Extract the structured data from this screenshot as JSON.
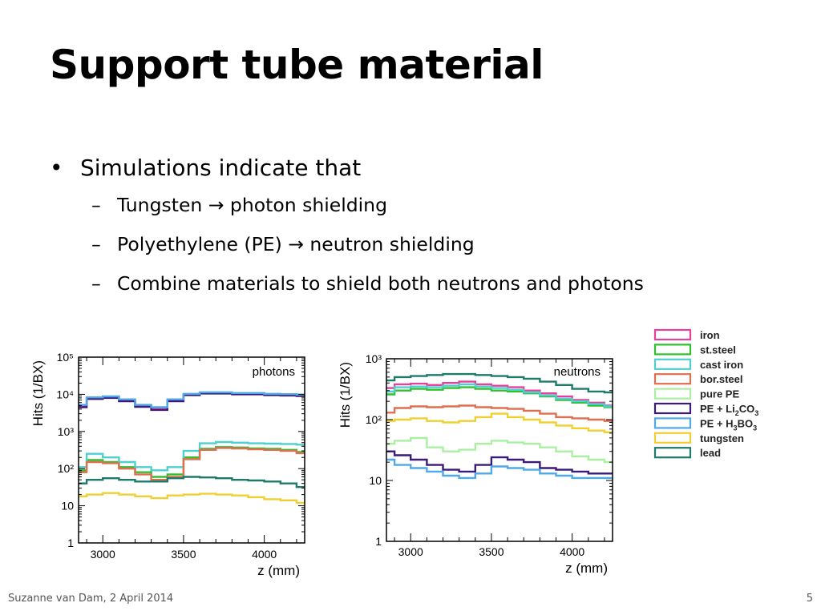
{
  "slide": {
    "title": "Support tube material",
    "bullet": "Simulations indicate that",
    "subbullets": [
      "Tungsten → photon shielding",
      "Polyethylene (PE) → neutron shielding",
      "Combine materials to shield both neutrons and photons"
    ],
    "dash": "–",
    "footer": "Suzanne van Dam, 2 April 2014",
    "page_number": "5"
  },
  "legend": [
    {
      "label": "iron",
      "color": "#e8409a"
    },
    {
      "label": "st.steel",
      "color": "#2ec02e"
    },
    {
      "label": "cast iron",
      "color": "#4fd0d0"
    },
    {
      "label": "bor.steel",
      "color": "#e06e50"
    },
    {
      "label": "pure PE",
      "color": "#a8f0a0"
    },
    {
      "label": "PE + Li2CO3",
      "color": "#3a1a7a"
    },
    {
      "label": "PE + H3BO3",
      "color": "#4fa8e8"
    },
    {
      "label": "tungsten",
      "color": "#f0d030"
    },
    {
      "label": "lead",
      "color": "#1e7a6a"
    }
  ],
  "chart_data": [
    {
      "type": "line",
      "annotation": "photons",
      "xlabel": "z (mm)",
      "ylabel": "Hits (1/BX)",
      "xlim": [
        2850,
        4250
      ],
      "ylim": [
        1,
        100000
      ],
      "yscale": "log",
      "x_ticks": [
        "3000",
        "3500",
        "4000"
      ],
      "y_ticks": [
        "1",
        "10",
        "10²",
        "10³",
        "10⁴",
        "10⁵"
      ],
      "x": [
        2850,
        2950,
        3050,
        3150,
        3250,
        3350,
        3450,
        3550,
        3650,
        3750,
        3850,
        3950,
        4050,
        4150,
        4250
      ],
      "series": [
        {
          "name": "iron",
          "values": [
            5000,
            8000,
            8500,
            7000,
            5000,
            4200,
            7000,
            10000,
            11000,
            11000,
            10500,
            10500,
            10000,
            9800,
            9500
          ]
        },
        {
          "name": "st.steel",
          "values": [
            90,
            170,
            150,
            110,
            80,
            60,
            70,
            200,
            340,
            380,
            370,
            350,
            340,
            320,
            280
          ]
        },
        {
          "name": "cast iron",
          "values": [
            110,
            250,
            200,
            150,
            110,
            90,
            110,
            300,
            480,
            520,
            500,
            480,
            470,
            460,
            440
          ]
        },
        {
          "name": "bor.steel",
          "values": [
            80,
            150,
            140,
            100,
            70,
            50,
            60,
            180,
            320,
            360,
            350,
            330,
            320,
            300,
            260
          ]
        },
        {
          "name": "PE + Li2CO3",
          "values": [
            4500,
            7500,
            8000,
            6500,
            4600,
            3800,
            6500,
            9500,
            10500,
            10500,
            10000,
            10000,
            9500,
            9300,
            9000
          ]
        },
        {
          "name": "PE + H3BO3",
          "values": [
            5200,
            8300,
            8800,
            7300,
            5200,
            4500,
            7300,
            10300,
            11300,
            11300,
            10800,
            10800,
            10300,
            10100,
            9800
          ]
        },
        {
          "name": "tungsten",
          "values": [
            18,
            20,
            22,
            20,
            18,
            16,
            19,
            20,
            21,
            20,
            19,
            17,
            15,
            14,
            12
          ]
        },
        {
          "name": "lead",
          "values": [
            40,
            50,
            55,
            50,
            45,
            45,
            55,
            60,
            58,
            55,
            50,
            48,
            45,
            40,
            32
          ]
        }
      ]
    },
    {
      "type": "line",
      "annotation": "neutrons",
      "xlabel": "z (mm)",
      "ylabel": "Hits (1/BX)",
      "xlim": [
        2850,
        4250
      ],
      "ylim": [
        1,
        1000
      ],
      "yscale": "log",
      "x_ticks": [
        "3000",
        "3500",
        "4000"
      ],
      "y_ticks": [
        "1",
        "10",
        "10²",
        "10³"
      ],
      "x": [
        2850,
        2950,
        3050,
        3150,
        3250,
        3350,
        3450,
        3550,
        3650,
        3750,
        3850,
        3950,
        4050,
        4150,
        4250
      ],
      "series": [
        {
          "name": "iron",
          "values": [
            330,
            380,
            390,
            370,
            400,
            420,
            380,
            360,
            340,
            300,
            270,
            240,
            210,
            190,
            170
          ]
        },
        {
          "name": "st.steel",
          "values": [
            260,
            300,
            320,
            310,
            330,
            340,
            320,
            300,
            290,
            270,
            240,
            210,
            190,
            170,
            160
          ]
        },
        {
          "name": "cast iron",
          "values": [
            290,
            340,
            350,
            340,
            360,
            380,
            350,
            330,
            310,
            280,
            250,
            220,
            200,
            180,
            165
          ]
        },
        {
          "name": "bor.steel",
          "values": [
            130,
            155,
            165,
            160,
            165,
            170,
            160,
            155,
            150,
            140,
            125,
            110,
            105,
            100,
            95
          ]
        },
        {
          "name": "pure PE",
          "values": [
            40,
            45,
            50,
            35,
            30,
            32,
            40,
            45,
            42,
            40,
            35,
            30,
            25,
            22,
            20
          ]
        },
        {
          "name": "PE + Li2CO3",
          "values": [
            30,
            26,
            22,
            18,
            15,
            14,
            18,
            24,
            22,
            20,
            16,
            15,
            14,
            13,
            13
          ]
        },
        {
          "name": "PE + H3BO3",
          "values": [
            22,
            18,
            16,
            14,
            12,
            11,
            13,
            17,
            16,
            15,
            13,
            12,
            11,
            11,
            11
          ]
        },
        {
          "name": "tungsten",
          "values": [
            95,
            100,
            105,
            95,
            90,
            95,
            110,
            125,
            110,
            100,
            90,
            80,
            72,
            66,
            62
          ]
        },
        {
          "name": "lead",
          "values": [
            440,
            500,
            520,
            540,
            560,
            560,
            540,
            520,
            500,
            470,
            420,
            370,
            320,
            290,
            280
          ]
        }
      ]
    }
  ]
}
